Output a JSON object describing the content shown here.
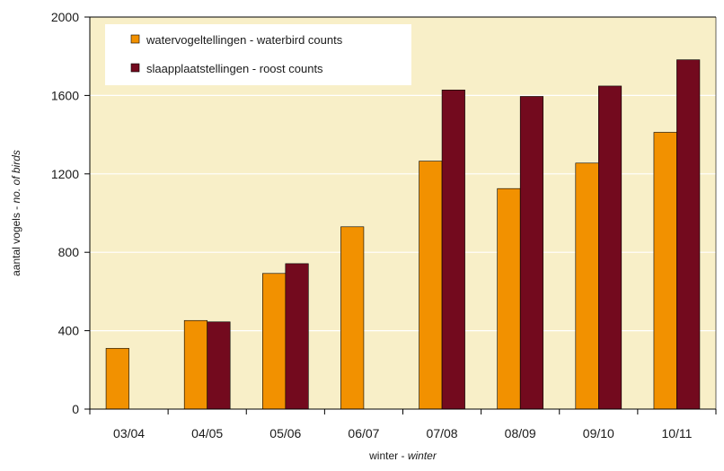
{
  "chart_data": {
    "type": "bar",
    "categories": [
      "03/04",
      "04/05",
      "05/06",
      "06/07",
      "07/08",
      "08/09",
      "09/10",
      "10/11"
    ],
    "series": [
      {
        "name": "watervogeltellingen - waterbird counts",
        "color": "#f29100",
        "values": [
          310,
          452,
          692,
          930,
          1265,
          1125,
          1255,
          1412
        ]
      },
      {
        "name": "slaapplaatstellingen - roost counts",
        "color": "#730a1e",
        "values": [
          null,
          445,
          742,
          null,
          1628,
          1595,
          1648,
          1782
        ]
      }
    ],
    "xlabel": {
      "main": "winter - ",
      "italic": "winter"
    },
    "ylabel": {
      "main": "aantal vogels - ",
      "italic": "no. of birds"
    },
    "ylim": [
      0,
      2000
    ],
    "yticks": [
      0,
      400,
      800,
      1200,
      1600,
      2000
    ],
    "grid": true,
    "legend_position": "top-left",
    "plot_background": "#f8efc8",
    "grid_color": "#ffffff"
  }
}
